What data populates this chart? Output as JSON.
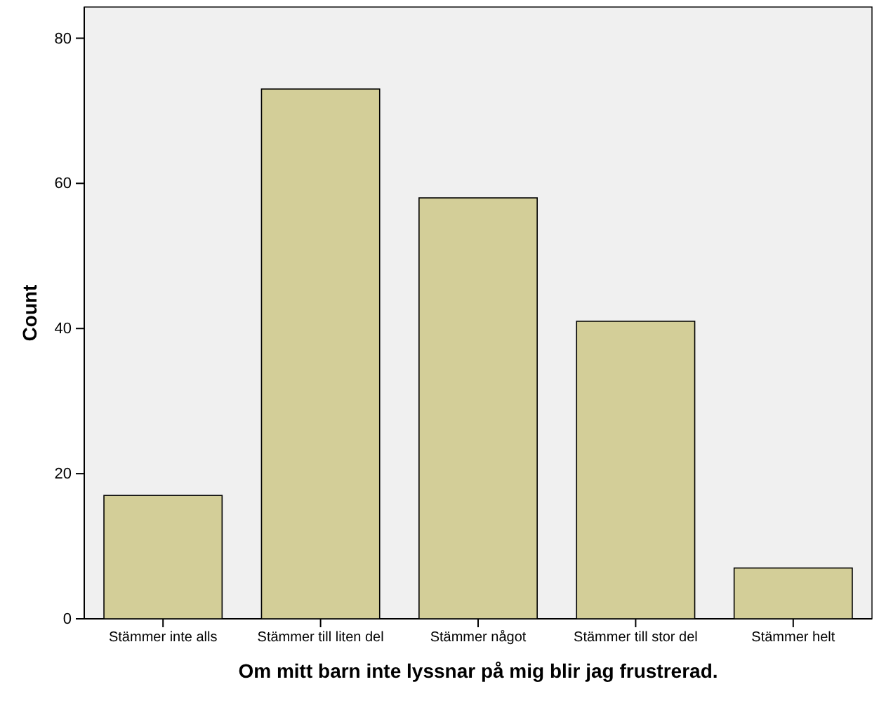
{
  "chart_data": {
    "type": "bar",
    "xlabel": "Om mitt barn inte lyssnar på mig blir jag frustrerad.",
    "ylabel": "Count",
    "categories": [
      "Stämmer inte alls",
      "Stämmer till liten del",
      "Stämmer något",
      "Stämmer till stor del",
      "Stämmer helt"
    ],
    "values": [
      17,
      73,
      58,
      41,
      7
    ],
    "color": "#d3ce98",
    "ylim": [
      0,
      84.3
    ],
    "yticks": [
      0,
      20,
      40,
      60,
      80
    ]
  }
}
